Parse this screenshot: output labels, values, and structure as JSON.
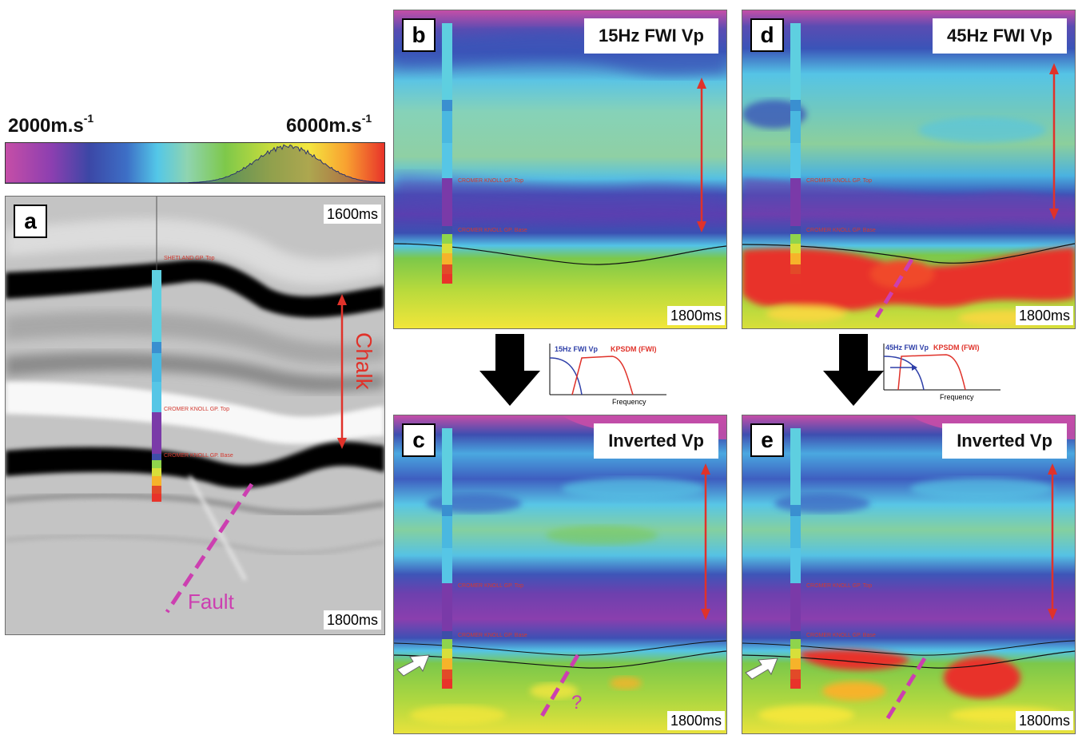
{
  "colorbar": {
    "min_label": "2000m.s",
    "min_exp": "-1",
    "max_label": "6000m.s",
    "max_exp": "-1",
    "gradient_stops": [
      "#c54ea7",
      "#8d3fb0",
      "#3c47a6",
      "#3d6fc6",
      "#53c7e8",
      "#8fd4b0",
      "#7ec84a",
      "#c8dc3c",
      "#f4e640",
      "#f8a030",
      "#e8332a"
    ]
  },
  "panels": {
    "a": {
      "letter": "a",
      "time_top": "1600ms",
      "time_bottom": "1800ms",
      "chalk_label": "Chalk",
      "fault_label": "Fault",
      "well_tops": [
        "SHETLAND GP. Top",
        "CROMER KNOLL GP. Top",
        "CROMER KNOLL GP. Base"
      ]
    },
    "b": {
      "letter": "b",
      "title": "15Hz FWI Vp",
      "time_bottom": "1800ms",
      "well_tops": [
        "CROMER KNOLL GP. Top",
        "CROMER KNOLL GP. Base"
      ]
    },
    "c": {
      "letter": "c",
      "title": "Inverted Vp",
      "time_bottom": "1800ms",
      "question": "?",
      "well_tops": [
        "CROMER KNOLL GP. Top",
        "CROMER KNOLL GP. Base"
      ]
    },
    "d": {
      "letter": "d",
      "title": "45Hz FWI Vp",
      "time_bottom": "1800ms",
      "well_tops": [
        "CROMER KNOLL GP. Top",
        "CROMER KNOLL GP. Base"
      ]
    },
    "e": {
      "letter": "e",
      "title": "Inverted Vp",
      "time_bottom": "1800ms",
      "well_tops": [
        "CROMER KNOLL GP. Top",
        "CROMER KNOLL GP. Base"
      ]
    }
  },
  "spectra": {
    "left": {
      "curve1": "15Hz FWI Vp",
      "curve2": "KPSDM (FWI)",
      "xlabel": "Frequency"
    },
    "right": {
      "curve1": "45Hz FWI Vp",
      "curve2": "KPSDM (FWI)",
      "xlabel": "Frequency"
    }
  },
  "colors": {
    "arrow_red": "#e0322a",
    "fault_magenta": "#cc3fb0",
    "spectrum_blue": "#2e3fa8",
    "spectrum_red": "#e0322a"
  }
}
